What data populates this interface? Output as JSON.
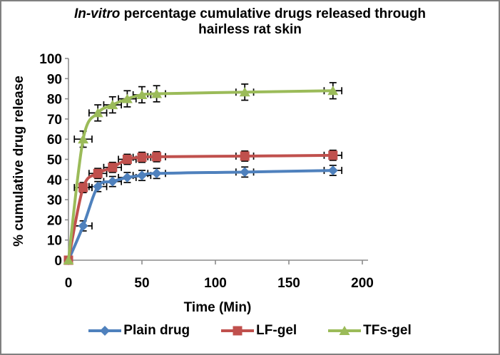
{
  "panel": {
    "background": "#FFFFFF",
    "border_color": "#808080"
  },
  "title": {
    "italic": "In-vitro",
    "rest": " percentage cumulative drugs released through",
    "line2": "hairless rat skin"
  },
  "chart_data": {
    "type": "line",
    "title": "In-vitro percentage cumulative drugs released through hairless rat skin",
    "xlabel": "Time (Min)",
    "ylabel": "% cumulative drug release",
    "x": [
      0,
      10,
      20,
      30,
      40,
      50,
      60,
      120,
      180
    ],
    "series": [
      {
        "name": "Plain drug",
        "color": "#4F81BD",
        "marker": "diamond",
        "values": [
          0,
          17,
          36.5,
          39,
          41,
          42,
          43,
          43.7,
          44.5
        ],
        "y_error": 2.5
      },
      {
        "name": "LF-gel",
        "color": "#C0504D",
        "marker": "square",
        "values": [
          0,
          36,
          43,
          46,
          50,
          51,
          51.3,
          51.6,
          52
        ],
        "y_error": 2.5
      },
      {
        "name": "TFs-gel",
        "color": "#9BBB59",
        "marker": "triangle",
        "values": [
          0,
          60,
          73,
          77,
          80,
          82,
          82.5,
          83.3,
          84
        ],
        "y_error": 4
      }
    ],
    "x_error": 6,
    "xlim": [
      0,
      200
    ],
    "ylim": [
      0,
      100
    ],
    "xticks": [
      0,
      50,
      100,
      150,
      200
    ],
    "yticks": [
      0,
      10,
      20,
      30,
      40,
      50,
      60,
      70,
      80,
      90,
      100
    ],
    "grid": false,
    "smooth": true,
    "legend_position": "bottom",
    "axis_color": "#8C8C8C",
    "error_color": "#000000",
    "tick_label_color": "#000000"
  }
}
